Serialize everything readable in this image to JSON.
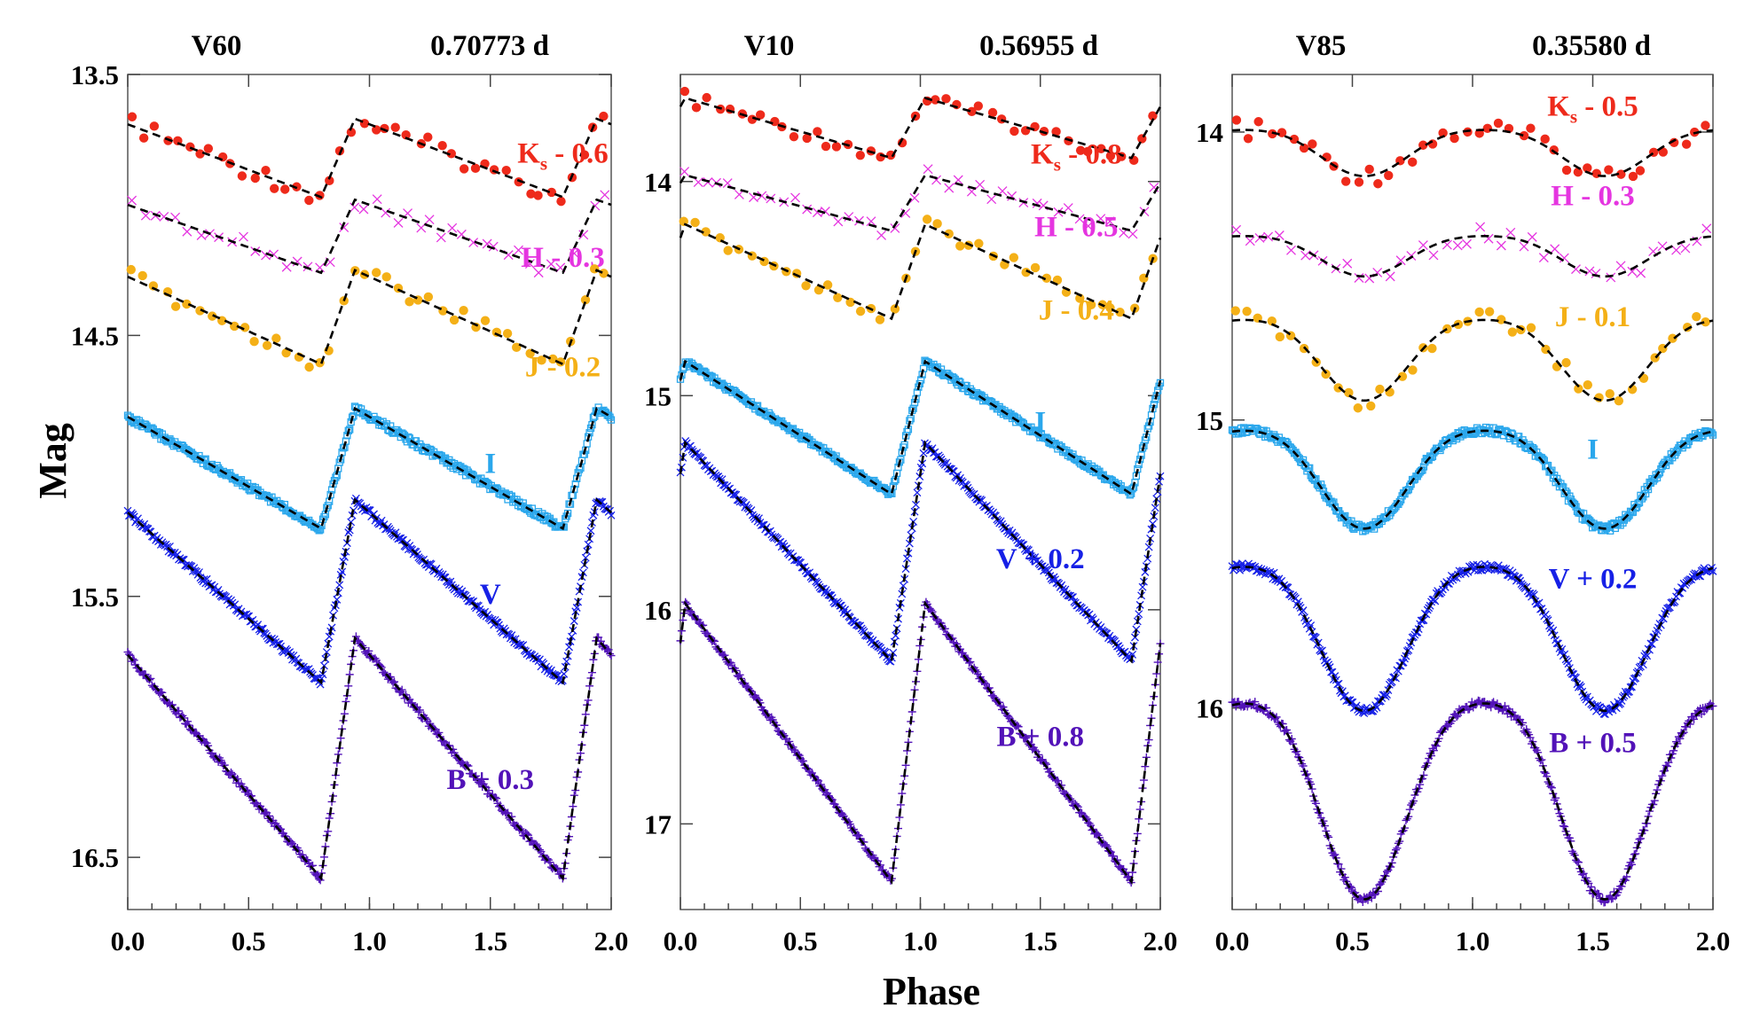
{
  "figure": {
    "xlabel": "Phase",
    "ylabel": "Mag"
  },
  "chart_data": [
    {
      "type": "scatter",
      "star": "V60",
      "period": "0.70773 d",
      "xlabel": "Phase",
      "ylabel": "Mag",
      "xlim": [
        0.0,
        2.0
      ],
      "ylim": [
        13.5,
        16.7
      ],
      "y_inverted": true,
      "x_ticks": [
        "0.0",
        "0.5",
        "1.0",
        "1.5",
        "2.0"
      ],
      "y_ticks": [
        "13.5",
        "14.5",
        "15.5",
        "16.5"
      ],
      "shape": "saw",
      "phase_min": 0.8,
      "series": [
        {
          "band": "Ks",
          "label_main": "K",
          "label_sub": "s",
          "label_rest": " - 0.6",
          "offset": -0.6,
          "color": "#ee2a1b",
          "marker": "dot",
          "mean": 13.82,
          "amp": 0.3,
          "label_x": 1.8,
          "label_y": 13.8
        },
        {
          "band": "H",
          "label_main": "H - 0.3",
          "offset": -0.3,
          "color": "#e535e0",
          "marker": "x",
          "mean": 14.12,
          "amp": 0.28,
          "label_x": 1.8,
          "label_y": 14.2
        },
        {
          "band": "J",
          "label_main": "J - 0.2",
          "offset": -0.2,
          "color": "#f4b017",
          "marker": "dot",
          "mean": 14.43,
          "amp": 0.36,
          "label_x": 1.8,
          "label_y": 14.62
        },
        {
          "band": "I",
          "label_main": "I",
          "offset": 0.0,
          "color": "#2aa7ec",
          "marker": "box",
          "mean": 15.01,
          "amp": 0.46,
          "label_x": 1.5,
          "label_y": 14.99
        },
        {
          "band": "V",
          "label_main": "V",
          "offset": 0.0,
          "color": "#1620e6",
          "marker": "x",
          "mean": 15.48,
          "amp": 0.7,
          "label_x": 1.5,
          "label_y": 15.49
        },
        {
          "band": "B",
          "label_main": "B + 0.3",
          "offset": 0.3,
          "color": "#5212b8",
          "marker": "plus",
          "mean": 16.12,
          "amp": 0.92,
          "label_x": 1.5,
          "label_y": 16.2
        }
      ]
    },
    {
      "type": "scatter",
      "star": "V10",
      "period": "0.56955 d",
      "xlabel": "Phase",
      "ylabel": "Mag",
      "xlim": [
        0.0,
        2.0
      ],
      "ylim": [
        13.5,
        17.4
      ],
      "y_inverted": true,
      "x_ticks": [
        "0.0",
        "0.5",
        "1.0",
        "1.5",
        "2.0"
      ],
      "y_ticks": [
        "14",
        "15",
        "16",
        "17"
      ],
      "shape": "saw",
      "phase_min": 0.88,
      "series": [
        {
          "band": "Ks",
          "label_main": "K",
          "label_sub": "s",
          "label_rest": " - 0.8",
          "offset": -0.8,
          "color": "#ee2a1b",
          "marker": "dot",
          "mean": 13.75,
          "amp": 0.28,
          "label_x": 1.65,
          "label_y": 13.87
        },
        {
          "band": "H",
          "label_main": "H - 0.5",
          "offset": -0.5,
          "color": "#e535e0",
          "marker": "x",
          "mean": 14.1,
          "amp": 0.26,
          "label_x": 1.65,
          "label_y": 14.21
        },
        {
          "band": "J",
          "label_main": "J - 0.4",
          "offset": -0.4,
          "color": "#f4b017",
          "marker": "dot",
          "mean": 14.42,
          "amp": 0.44,
          "label_x": 1.65,
          "label_y": 14.6
        },
        {
          "band": "I",
          "label_main": "I",
          "offset": 0.0,
          "color": "#2aa7ec",
          "marker": "box",
          "mean": 15.15,
          "amp": 0.62,
          "label_x": 1.5,
          "label_y": 15.12
        },
        {
          "band": "V",
          "label_main": "V + 0.2",
          "offset": 0.2,
          "color": "#1620e6",
          "marker": "x",
          "mean": 15.73,
          "amp": 1.02,
          "label_x": 1.5,
          "label_y": 15.76
        },
        {
          "band": "B",
          "label_main": "B + 0.8",
          "offset": 0.8,
          "color": "#5212b8",
          "marker": "plus",
          "mean": 16.62,
          "amp": 1.3,
          "label_x": 1.5,
          "label_y": 16.59
        }
      ]
    },
    {
      "type": "scatter",
      "star": "V85",
      "period": "0.35580 d",
      "xlabel": "Phase",
      "ylabel": "Mag",
      "xlim": [
        0.0,
        2.0
      ],
      "ylim": [
        13.8,
        16.7
      ],
      "y_inverted": true,
      "x_ticks": [
        "0.0",
        "0.5",
        "1.0",
        "1.5",
        "2.0"
      ],
      "y_ticks": [
        "14",
        "15",
        "16"
      ],
      "shape": "sine",
      "phase_min": 0.55,
      "series": [
        {
          "band": "Ks",
          "label_main": "K",
          "label_sub": "s",
          "label_rest": " - 0.5",
          "offset": -0.5,
          "color": "#ee2a1b",
          "marker": "dot",
          "mean": 14.06,
          "amp": 0.16,
          "label_x": 1.5,
          "label_y": 13.91
        },
        {
          "band": "H",
          "label_main": "H - 0.3",
          "offset": -0.3,
          "color": "#e535e0",
          "marker": "x",
          "mean": 14.42,
          "amp": 0.14,
          "label_x": 1.5,
          "label_y": 14.22
        },
        {
          "band": "J",
          "label_main": "J - 0.1",
          "offset": -0.1,
          "color": "#f4b017",
          "marker": "dot",
          "mean": 14.77,
          "amp": 0.28,
          "label_x": 1.5,
          "label_y": 14.64
        },
        {
          "band": "I",
          "label_main": "I",
          "offset": 0.0,
          "color": "#2aa7ec",
          "marker": "box",
          "mean": 15.18,
          "amp": 0.34,
          "label_x": 1.5,
          "label_y": 15.1
        },
        {
          "band": "V",
          "label_main": "V + 0.2",
          "offset": 0.2,
          "color": "#1620e6",
          "marker": "x",
          "mean": 15.72,
          "amp": 0.5,
          "label_x": 1.5,
          "label_y": 15.55
        },
        {
          "band": "B",
          "label_main": "B + 0.5",
          "offset": 0.5,
          "color": "#5212b8",
          "marker": "plus",
          "mean": 16.27,
          "amp": 0.68,
          "label_x": 1.5,
          "label_y": 16.12
        }
      ]
    }
  ]
}
